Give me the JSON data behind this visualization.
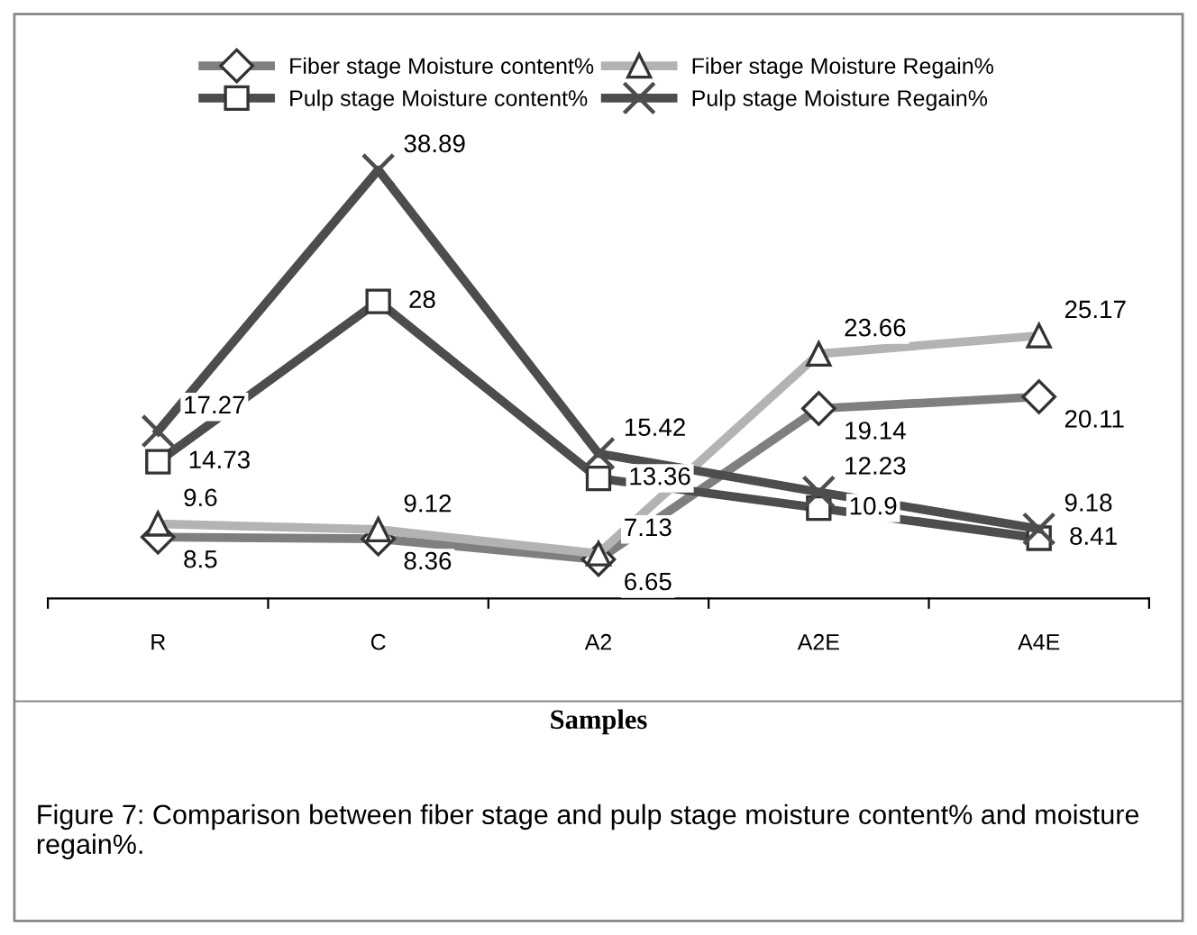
{
  "chart_data": {
    "type": "line",
    "xlabel": "Samples",
    "categories": [
      "R",
      "C",
      "A2",
      "A2E",
      "A4E"
    ],
    "series": [
      {
        "name": "Fiber stage Moisture content%",
        "color": "#7f7f7f",
        "marker": "diamond",
        "values": [
          8.5,
          8.36,
          6.65,
          19.14,
          20.11
        ]
      },
      {
        "name": "Pulp stage Moisture content%",
        "color": "#4d4d4d",
        "marker": "square",
        "values": [
          14.73,
          28,
          13.36,
          10.9,
          8.41
        ]
      },
      {
        "name": "Fiber stage Moisture Regain%",
        "color": "#b3b3b3",
        "marker": "triangle",
        "values": [
          9.6,
          9.12,
          7.13,
          23.66,
          25.17
        ]
      },
      {
        "name": "Pulp stage Moisture Regain%",
        "color": "#4d4d4d",
        "marker": "cross",
        "values": [
          17.27,
          38.89,
          15.42,
          12.23,
          9.18
        ]
      }
    ],
    "data_labels": true,
    "legend": "top",
    "grid": false,
    "tick_labels": "x",
    "annotations": [
      "Figure 7: Comparison between fiber stage and pulp stage moisture content% and moisture regain%."
    ]
  }
}
